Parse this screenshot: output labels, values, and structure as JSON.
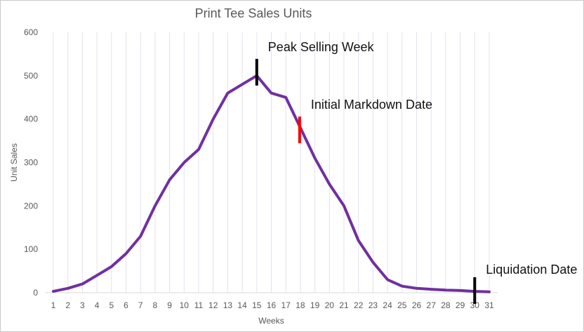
{
  "chart_data": {
    "type": "line",
    "title": "Print Tee Sales Units",
    "xlabel": "Weeks",
    "ylabel": "Unit Sales",
    "ylim": [
      0,
      600
    ],
    "yticks": [
      0,
      100,
      200,
      300,
      400,
      500,
      600
    ],
    "grid": "vertical",
    "categories": [
      "1",
      "2",
      "3",
      "4",
      "5",
      "6",
      "7",
      "8",
      "9",
      "10",
      "11",
      "12",
      "13",
      "14",
      "15",
      "16",
      "17",
      "18",
      "19",
      "20",
      "21",
      "22",
      "23",
      "24",
      "25",
      "26",
      "27",
      "28",
      "29",
      "30",
      "31"
    ],
    "series": [
      {
        "values": [
          3,
          10,
          20,
          40,
          60,
          90,
          130,
          200,
          260,
          300,
          330,
          400,
          460,
          480,
          500,
          460,
          450,
          380,
          310,
          250,
          200,
          120,
          70,
          30,
          15,
          10,
          8,
          6,
          5,
          3,
          2
        ],
        "color": "#7030a0"
      }
    ],
    "annotations": [
      {
        "label": "Peak Selling Week",
        "week": 15,
        "y": 508,
        "color": "#000000"
      },
      {
        "label": "Initial Markdown Date",
        "week": 18,
        "y": 375,
        "color": "#ff0000"
      },
      {
        "label": "Liquidation Date",
        "week": 30,
        "y": 5,
        "color": "#000000"
      }
    ]
  }
}
